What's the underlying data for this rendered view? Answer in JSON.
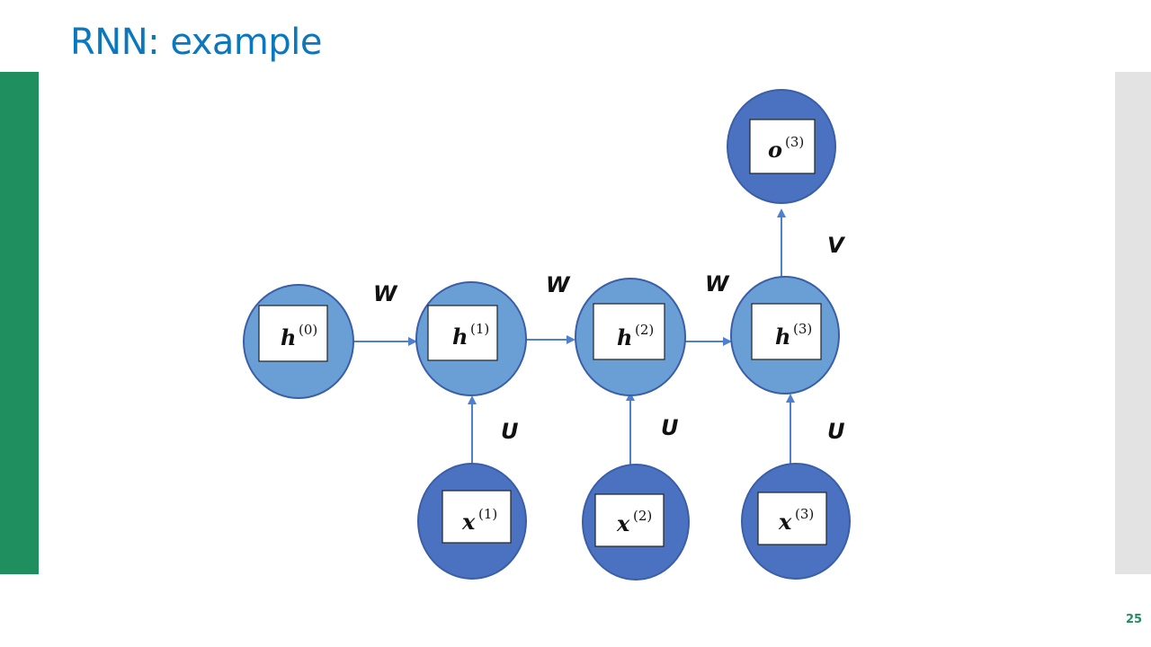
{
  "slide": {
    "title": "RNN: example",
    "page_number": "25"
  },
  "colors": {
    "title": "#0b78be",
    "left_bar": "#1f8f5f",
    "right_bar": "#e3e3e3",
    "hidden_node": "#6a9fd5",
    "input_output_node": "#4a72c0",
    "node_stroke": "#3a5ea8",
    "arrow": "#4f7fd0"
  },
  "diagram": {
    "nodes": {
      "h0": {
        "base": "h",
        "sup": "(0)"
      },
      "h1": {
        "base": "h",
        "sup": "(1)"
      },
      "h2": {
        "base": "h",
        "sup": "(2)"
      },
      "h3": {
        "base": "h",
        "sup": "(3)"
      },
      "x1": {
        "base": "x",
        "sup": "(1)"
      },
      "x2": {
        "base": "x",
        "sup": "(2)"
      },
      "x3": {
        "base": "x",
        "sup": "(3)"
      },
      "o3": {
        "base": "o",
        "sup": "(3)"
      }
    },
    "weights": {
      "W": "W",
      "U": "U",
      "V": "V"
    }
  }
}
